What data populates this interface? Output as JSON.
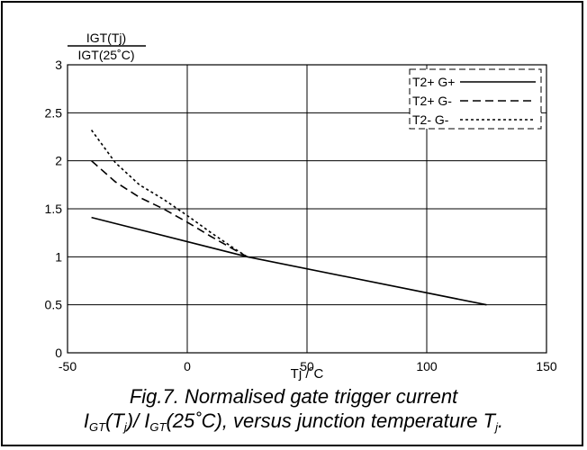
{
  "chart_data": {
    "type": "line",
    "ylabel_numerator": "IGT(Tj)",
    "ylabel_denominator": "IGT(25˚C)",
    "xlabel": "Tj /˚C",
    "xlim": [
      -50,
      150
    ],
    "ylim": [
      0,
      3
    ],
    "xticks": [
      "-50",
      "0",
      "50",
      "100",
      "150"
    ],
    "yticks": [
      "0",
      "0.5",
      "1",
      "1.5",
      "2",
      "2.5",
      "3"
    ],
    "grid": true,
    "legend_position": "top-right",
    "series": [
      {
        "name": "T2+ G+",
        "style": "solid",
        "x": [
          -40,
          25,
          125
        ],
        "y": [
          1.41,
          1.0,
          0.5
        ]
      },
      {
        "name": "T2+ G-",
        "style": "dashed",
        "x": [
          -40,
          -30,
          -20,
          -10,
          0,
          10,
          20,
          25
        ],
        "y": [
          2.0,
          1.78,
          1.62,
          1.5,
          1.36,
          1.21,
          1.07,
          1.0
        ]
      },
      {
        "name": "T2- G-",
        "style": "dotted",
        "x": [
          -40,
          -30,
          -20,
          -10,
          0,
          10,
          20,
          25
        ],
        "y": [
          2.32,
          1.98,
          1.75,
          1.6,
          1.43,
          1.25,
          1.08,
          1.0
        ]
      }
    ]
  },
  "caption": {
    "line1": "Fig.7.   Normalised gate trigger current",
    "line2_parts": {
      "i1": "I",
      "gt1": "GT",
      "tj_open": "(T",
      "j1": "j",
      "mid": ")/ I",
      "gt2": "GT",
      "tail": "(25˚C), versus junction temperature T",
      "j2": "j",
      "end": "."
    }
  }
}
